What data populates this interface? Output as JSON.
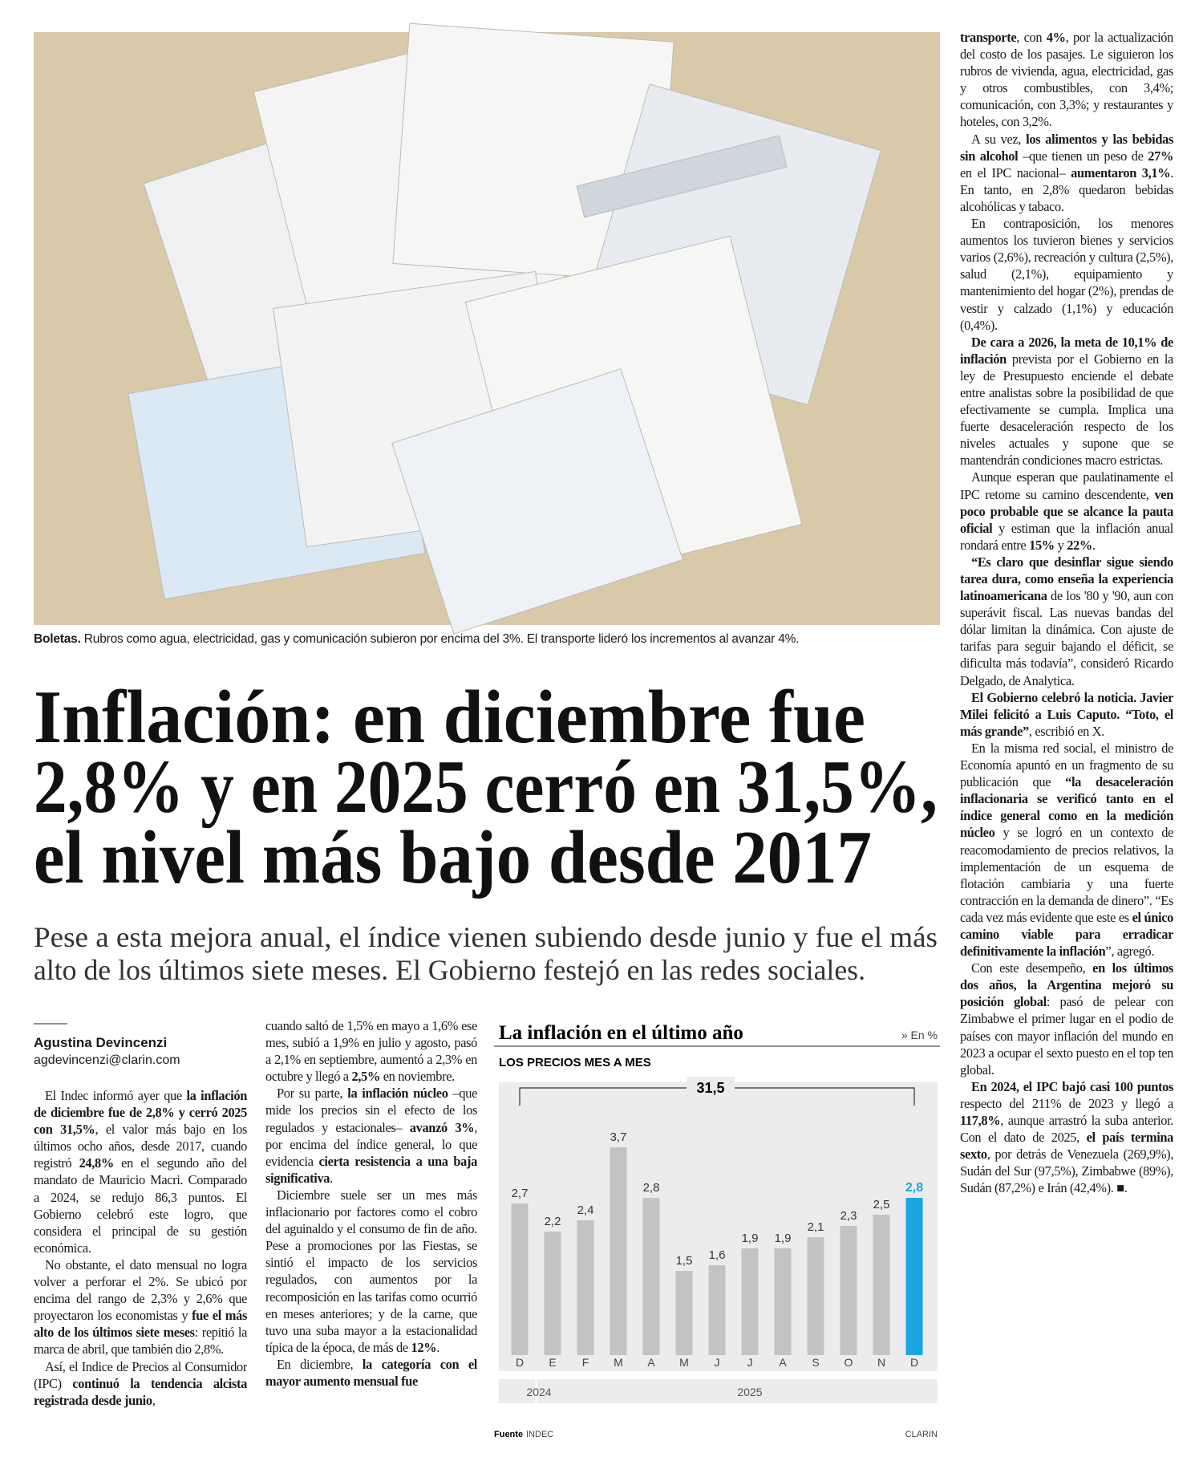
{
  "photo": {
    "caption_lead": "Boletas.",
    "caption": " Rubros como agua, electricidad, gas y comunicación subieron por encima del 3%. El transporte lideró los incrementos al avanzar 4%."
  },
  "headline": [
    "Inflación: en diciembre fue",
    "2,8% y en 2025 cerró en 31,5%,",
    "el nivel más bajo desde 2017"
  ],
  "deck": [
    "Pese a esta mejora anual, el índice vienen subiendo desde junio y fue el más",
    "alto de los últimos siete meses. El Gobierno festejó en las redes sociales."
  ],
  "byline": {
    "author": "Agustina Devincenzi",
    "email": "agdevincenzi@clarin.com"
  },
  "columns": [
    [
      [
        "El Indec informó ayer que ",
        {
          "bold": "la inflación de diciembre fue de 2,8% y cerró 2025 con 31,5%"
        },
        ", el valor más bajo en los últimos ocho años, desde 2017, cuando registró ",
        {
          "bold": "24,8%"
        },
        " en el segundo año del mandato de Mauricio Macri. Comparado a 2024, se redujo 86,3 puntos. El Gobierno celebró este logro, que considera el principal de su gestión económica."
      ],
      [
        "No obstante, el dato mensual no logra volver a perforar el 2%. Se ubicó por encima del rango de 2,3% y 2,6% que proyectaron los economistas y ",
        {
          "bold": "fue el más alto de los últimos siete meses"
        },
        ": repitió la marca de abril, que también dio 2,8%."
      ],
      [
        "Así, el Indice de Precios al Consumidor (IPC) ",
        {
          "bold": "continuó la tendencia alcista registrada desde junio"
        },
        ","
      ]
    ],
    [
      [
        "cuando saltó de 1,5% en mayo a 1,6% ese mes, subió a 1,9% en julio y agosto, pasó a 2,1% en septiembre, aumentó a 2,3% en octubre y llegó a ",
        {
          "bold": "2,5%"
        },
        " en noviembre."
      ],
      [
        "Por su parte, ",
        {
          "bold": "la inflación núcleo"
        },
        " –que mide los precios sin el efecto de los regulados y estacionales– ",
        {
          "bold": "avanzó 3%"
        },
        ", por encima del índice general, lo que evidencia ",
        {
          "bold": "cierta resistencia a una baja significativa"
        },
        "."
      ],
      [
        "Diciembre suele ser un mes más inflacionario por factores como el cobro del aguinaldo y el consumo de fin de año. Pese a promociones por las Fiestas, se sintió el impacto de los servicios regulados, con aumentos por la recomposición en las tarifas como ocurrió en meses anteriores; y de la carne, que tuvo una suba mayor a la estacionalidad típica de la época, de más de ",
        {
          "bold": "12%"
        },
        "."
      ],
      [
        "En diciembre, ",
        {
          "bold": "la categoría con el mayor aumento mensual fue"
        }
      ]
    ],
    [
      [
        {
          "bold": "transporte"
        },
        ", con ",
        {
          "bold": "4%"
        },
        ", por la actualización del costo de los pasajes. Le siguieron los rubros de vivienda, agua, electricidad, gas y otros combustibles, con 3,4%; comunicación, con 3,3%; y restaurantes y hoteles, con 3,2%."
      ],
      [
        "A su vez, ",
        {
          "bold": "los alimentos y las bebidas sin alcohol"
        },
        " –que tienen un peso de ",
        {
          "bold": "27%"
        },
        " en el IPC nacional– ",
        {
          "bold": "aumentaron 3,1%"
        },
        ". En tanto, en 2,8% quedaron bebidas alcohólicas y tabaco."
      ],
      [
        "En contraposición, los menores aumentos los tuvieron bienes y servicios varios (2,6%), recreación y cultura (2,5%), salud (2,1%), equipamiento y mantenimiento del hogar (2%), prendas de vestir y calzado (1,1%) y educación (0,4%)."
      ],
      [
        {
          "bold": "De cara a 2026, la meta de 10,1% de inflación"
        },
        " prevista por el Gobierno en la ley de Presupuesto enciende el debate entre analistas sobre la posibilidad de que efectivamente se cumpla. Implica una fuerte desaceleración respecto de los niveles actuales y supone que se mantendrán condiciones macro estrictas."
      ],
      [
        "Aunque esperan que paulatinamente el IPC retome su camino descendente, ",
        {
          "bold": "ven poco probable que se alcance la pauta oficial"
        },
        " y estiman que la inflación anual rondará entre ",
        {
          "bold": "15%"
        },
        " y ",
        {
          "bold": "22%"
        },
        "."
      ],
      [
        {
          "bold": "“Es claro que desinflar sigue siendo tarea dura, como enseña la experiencia latinoamericana"
        },
        " de los '80 y '90, aun con superávit fiscal. Las nuevas bandas del dólar limitan la dinámica. Con ajuste de tarifas para seguir bajando el déficit, se dificulta más todavía”, consideró Ricardo Delgado, de Analytica."
      ],
      [
        {
          "bold": "El Gobierno celebró la noticia. Javier Milei felicitó a Luis Caputo. “Toto, el más grande”"
        },
        ", escribió en X."
      ],
      [
        "En la misma red social, el ministro de Economía apuntó en un fragmento de su publicación que ",
        {
          "bold": "“la desaceleración inflacionaria se verificó tanto en el índice general como en la medición núcleo"
        },
        " y se logró en un contexto de reacomodamiento de precios relativos, la implementación de un esquema de flotación cambiaria y una fuerte contracción en la demanda de dinero”. “Es cada vez más evidente que este es ",
        {
          "bold": "el único camino viable para erradicar definitivamente la inflación"
        },
        "”, agregó."
      ],
      [
        "Con este desempeño, ",
        {
          "bold": "en los últimos dos años, la Argentina mejoró su posición global"
        },
        ": pasó de pelear con Zimbabwe el primer lugar en el podio de países con mayor inflación del mundo en 2023 a ocupar el sexto puesto en el top ten global."
      ],
      [
        {
          "bold": "En 2024, el IPC bajó casi 100 puntos"
        },
        " respecto del 211% de 2023 y llegó a ",
        {
          "bold": "117,8%"
        },
        ", aunque arrastró la suba anterior. Con el dato de 2025, ",
        {
          "bold": "el país termina sexto"
        },
        ", por detrás de Venezuela (269,9%), Sudán del Sur (97,5%), Zimbabwe (89%), Sudán (87,2%) e Irán (42,4%). ■."
      ]
    ]
  ],
  "chart_data": {
    "type": "bar",
    "title": "La inflación en el último año",
    "unit_note": "» En %",
    "subtitle": "LOS PRECIOS MES A MES",
    "categories": [
      "D",
      "E",
      "F",
      "M",
      "A",
      "M",
      "J",
      "J",
      "A",
      "S",
      "O",
      "N",
      "D"
    ],
    "values": [
      2.7,
      2.2,
      2.4,
      3.7,
      2.8,
      1.5,
      1.6,
      1.9,
      1.9,
      2.1,
      2.3,
      2.5,
      2.8
    ],
    "value_labels": [
      "2,7",
      "2,2",
      "2,4",
      "3,7",
      "2,8",
      "1,5",
      "1,6",
      "1,9",
      "1,9",
      "2,1",
      "2,3",
      "2,5",
      "2,8"
    ],
    "colors": [
      "#c3c3c3",
      "#c3c3c3",
      "#c3c3c3",
      "#c3c3c3",
      "#c3c3c3",
      "#c3c3c3",
      "#c3c3c3",
      "#c3c3c3",
      "#c3c3c3",
      "#c3c3c3",
      "#c3c3c3",
      "#c3c3c3",
      "#1ba6e2"
    ],
    "total": {
      "value": 31.5,
      "label": "31,5"
    },
    "year_labels": [
      "2024",
      "2025"
    ],
    "source_label": "Fuente",
    "source": "INDEC",
    "credit": "CLARIN"
  }
}
